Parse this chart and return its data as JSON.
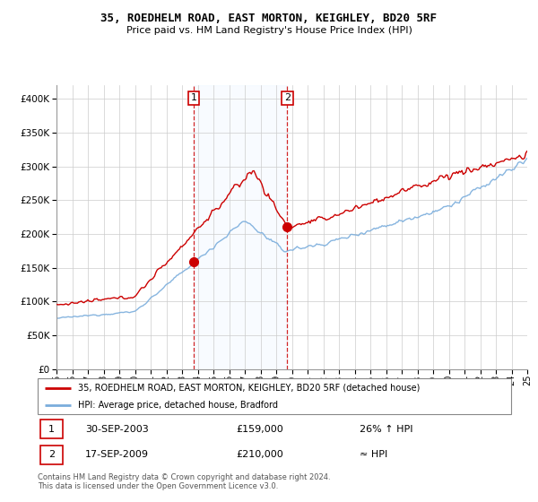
{
  "title": "35, ROEDHELM ROAD, EAST MORTON, KEIGHLEY, BD20 5RF",
  "subtitle": "Price paid vs. HM Land Registry's House Price Index (HPI)",
  "sale1_date": "30-SEP-2003",
  "sale1_price": 159000,
  "sale1_year": 2003.75,
  "sale1_hpi": "26% ↑ HPI",
  "sale2_date": "17-SEP-2009",
  "sale2_price": 210000,
  "sale2_year": 2009.71,
  "sale2_hpi": "≈ HPI",
  "legend_line1": "35, ROEDHELM ROAD, EAST MORTON, KEIGHLEY, BD20 5RF (detached house)",
  "legend_line2": "HPI: Average price, detached house, Bradford",
  "footer": "Contains HM Land Registry data © Crown copyright and database right 2024.\nThis data is licensed under the Open Government Licence v3.0.",
  "hpi_color": "#7aaddc",
  "price_color": "#cc0000",
  "shade_color": "#ddeeff",
  "ylim_min": 0,
  "ylim_max": 420000,
  "xlim_min": 1995,
  "xlim_max": 2025
}
